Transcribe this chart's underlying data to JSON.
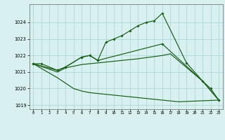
{
  "background_color": "#d8f0f0",
  "plot_bg": "#d8f0f0",
  "grid_color": "#b0d8d8",
  "line_color": "#1a5c1a",
  "xlabel_bg": "#2a6e2a",
  "xlabel_fg": "#ffffff",
  "ylim": [
    1018.75,
    1025.1
  ],
  "xlim": [
    -0.5,
    23.5
  ],
  "yticks": [
    1019,
    1020,
    1021,
    1022,
    1023,
    1024
  ],
  "xticks": [
    0,
    1,
    2,
    3,
    4,
    5,
    6,
    7,
    8,
    9,
    10,
    11,
    12,
    13,
    14,
    15,
    16,
    17,
    18,
    19,
    20,
    21,
    22,
    23
  ],
  "line1_x": [
    0,
    1,
    3,
    4,
    6,
    7,
    8,
    9,
    10,
    11,
    12,
    13,
    14,
    15,
    16,
    19,
    21,
    23
  ],
  "line1_y": [
    1021.5,
    1021.5,
    1021.1,
    1021.3,
    1021.9,
    1022.0,
    1021.7,
    1022.8,
    1023.0,
    1023.2,
    1023.5,
    1023.8,
    1024.0,
    1024.1,
    1024.55,
    1021.55,
    1020.45,
    1019.3
  ],
  "line2_x": [
    0,
    3,
    4,
    6,
    7,
    8,
    16,
    22,
    23
  ],
  "line2_y": [
    1021.5,
    1021.1,
    1021.3,
    1021.9,
    1022.0,
    1021.7,
    1022.7,
    1020.0,
    1019.3
  ],
  "line3_x": [
    0,
    3,
    4,
    5,
    6,
    7,
    8,
    9,
    10,
    11,
    12,
    13,
    14,
    15,
    16,
    17,
    21,
    23
  ],
  "line3_y": [
    1021.5,
    1021.0,
    1021.25,
    1021.35,
    1021.45,
    1021.5,
    1021.55,
    1021.6,
    1021.65,
    1021.7,
    1021.75,
    1021.8,
    1021.87,
    1021.93,
    1022.0,
    1022.1,
    1020.45,
    1019.3
  ],
  "line4_x": [
    0,
    3,
    5,
    6,
    7,
    8,
    9,
    10,
    11,
    12,
    13,
    14,
    15,
    16,
    17,
    18,
    23
  ],
  "line4_y": [
    1021.5,
    1020.65,
    1020.0,
    1019.85,
    1019.75,
    1019.7,
    1019.65,
    1019.6,
    1019.55,
    1019.5,
    1019.45,
    1019.4,
    1019.35,
    1019.3,
    1019.25,
    1019.2,
    1019.3
  ]
}
